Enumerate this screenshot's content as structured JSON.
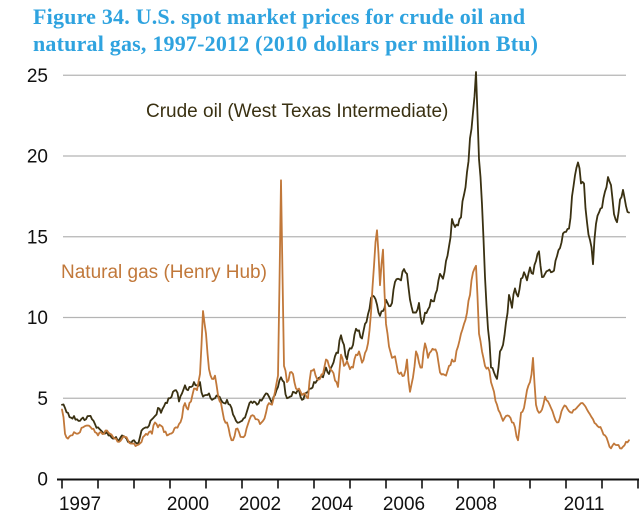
{
  "figure": {
    "title_line1": "Figure 34. U.S. spot market prices for crude oil and",
    "title_line2": "natural gas, 1997-2012 (2010 dollars per million Btu)",
    "title_color": "#2fa3df"
  },
  "chart_data": {
    "type": "line",
    "title": "Figure 34. U.S. spot market prices for crude oil and natural gas, 1997-2012 (2010 dollars per million Btu)",
    "ylabel": "2010 dollars per million Btu",
    "ylim": [
      0,
      25
    ],
    "yticks": [
      0,
      5,
      10,
      15,
      20,
      25
    ],
    "xtick_years": [
      1997,
      1998,
      1999,
      2000,
      2001,
      2002,
      2003,
      2004,
      2005,
      2006,
      2007,
      2008,
      2009,
      2010,
      2011,
      2012,
      2013
    ],
    "xtick_labeled_years": [
      1997,
      2000,
      2002,
      2004,
      2006,
      2008,
      2011
    ],
    "grid": "horizontal",
    "legend_position": "inline-labels",
    "x_start_year": 1997.0,
    "points_per_year": 12,
    "axis_color": "#111111",
    "grid_color": "#b4b4b4",
    "series": [
      {
        "name": "Crude oil (West Texas Intermediate)",
        "color": "#3a3112",
        "values": [
          4.6,
          4.4,
          4.1,
          3.8,
          3.9,
          3.7,
          3.6,
          3.8,
          3.7,
          3.9,
          3.7,
          3.4,
          3.2,
          3.0,
          2.8,
          2.9,
          2.7,
          2.5,
          2.6,
          2.4,
          2.7,
          2.6,
          2.3,
          2.2,
          2.4,
          2.2,
          2.6,
          3.1,
          3.2,
          3.3,
          3.7,
          3.9,
          4.4,
          4.1,
          4.5,
          4.7,
          5.0,
          5.4,
          5.5,
          4.8,
          5.3,
          5.8,
          5.5,
          5.7,
          6.0,
          5.8,
          6.0,
          5.1,
          5.2,
          5.3,
          4.9,
          5.0,
          5.1,
          4.9,
          4.7,
          4.9,
          4.6,
          4.0,
          3.6,
          3.5,
          3.6,
          3.8,
          4.4,
          4.8,
          4.8,
          4.6,
          4.9,
          5.0,
          5.3,
          5.1,
          4.7,
          5.2,
          5.7,
          6.3,
          6.0,
          5.0,
          5.1,
          5.4,
          5.3,
          5.5,
          4.9,
          5.3,
          5.4,
          5.6,
          6.0,
          6.1,
          6.3,
          6.3,
          6.9,
          6.5,
          7.0,
          7.6,
          7.8,
          8.9,
          8.3,
          7.4,
          8.1,
          8.3,
          9.3,
          9.2,
          8.7,
          9.6,
          10.2,
          11.2,
          11.3,
          10.8,
          10.1,
          10.4,
          11.1,
          10.7,
          10.9,
          12.2,
          12.4,
          12.3,
          13.0,
          12.7,
          11.1,
          10.3,
          10.3,
          10.9,
          9.6,
          10.3,
          10.5,
          11.1,
          11.0,
          11.7,
          12.7,
          12.4,
          13.5,
          14.4,
          16.1,
          15.6,
          15.7,
          16.2,
          17.6,
          19.0,
          21.1,
          22.7,
          25.2,
          19.8,
          17.0,
          12.5,
          9.3,
          6.9,
          6.6,
          6.2,
          7.9,
          8.3,
          9.7,
          11.4,
          10.6,
          11.8,
          11.3,
          12.4,
          12.8,
          12.3,
          13.1,
          12.7,
          13.5,
          14.1,
          12.5,
          12.7,
          12.9,
          12.8,
          12.9,
          13.8,
          14.3,
          15.2,
          15.3,
          15.5,
          17.5,
          18.8,
          19.6,
          18.3,
          18.3,
          15.9,
          14.8,
          13.3,
          15.8,
          16.5,
          16.8,
          17.8,
          18.7,
          18.2,
          16.4,
          15.9,
          17.3,
          17.9,
          16.9,
          16.5
        ]
      },
      {
        "name": "Natural gas (Henry Hub)",
        "color": "#c1783a",
        "values": [
          4.3,
          2.8,
          2.5,
          2.7,
          2.9,
          2.8,
          2.9,
          3.2,
          3.3,
          3.3,
          3.1,
          2.9,
          2.7,
          2.9,
          2.8,
          3.0,
          2.8,
          2.6,
          2.5,
          2.3,
          2.5,
          2.6,
          2.4,
          2.2,
          2.2,
          2.1,
          2.2,
          2.6,
          2.8,
          2.9,
          2.8,
          3.5,
          3.2,
          3.3,
          2.9,
          2.7,
          2.8,
          2.9,
          3.2,
          3.4,
          3.8,
          4.7,
          4.3,
          4.8,
          5.6,
          5.5,
          6.5,
          10.4,
          9.0,
          6.8,
          6.2,
          6.4,
          5.2,
          4.7,
          3.7,
          3.5,
          2.7,
          2.4,
          3.1,
          2.9,
          2.6,
          2.7,
          3.4,
          3.9,
          3.9,
          3.7,
          3.4,
          3.6,
          4.1,
          4.7,
          4.6,
          5.4,
          6.4,
          18.5,
          7.0,
          6.0,
          6.6,
          6.5,
          5.6,
          5.6,
          5.2,
          5.3,
          5.0,
          6.7,
          6.8,
          6.2,
          6.2,
          6.5,
          7.4,
          7.0,
          6.7,
          6.1,
          5.7,
          7.7,
          7.0,
          7.3,
          6.8,
          6.9,
          7.7,
          7.9,
          7.2,
          7.8,
          8.4,
          10.3,
          13.2,
          15.4,
          12.0,
          14.2,
          9.6,
          8.2,
          7.5,
          7.6,
          6.6,
          6.6,
          6.4,
          7.4,
          5.4,
          6.3,
          7.9,
          7.2,
          6.9,
          8.4,
          7.5,
          7.9,
          8.0,
          7.8,
          6.6,
          6.5,
          6.4,
          7.0,
          7.4,
          7.3,
          8.2,
          9.0,
          9.6,
          10.3,
          11.4,
          12.8,
          13.2,
          9.0,
          7.9,
          7.0,
          6.9,
          6.0,
          5.4,
          4.6,
          4.1,
          3.6,
          3.9,
          3.9,
          3.5,
          3.2,
          2.4,
          4.1,
          4.4,
          5.5,
          6.0,
          7.5,
          4.6,
          4.1,
          4.3,
          5.1,
          4.8,
          4.4,
          3.9,
          3.5,
          3.8,
          4.4,
          4.5,
          4.2,
          4.1,
          4.3,
          4.5,
          4.7,
          4.6,
          4.3,
          4.0,
          3.7,
          3.4,
          3.2,
          3.0,
          2.7,
          2.3,
          1.9,
          2.2,
          2.1,
          1.9,
          2.0,
          2.3,
          2.4
        ]
      }
    ]
  }
}
